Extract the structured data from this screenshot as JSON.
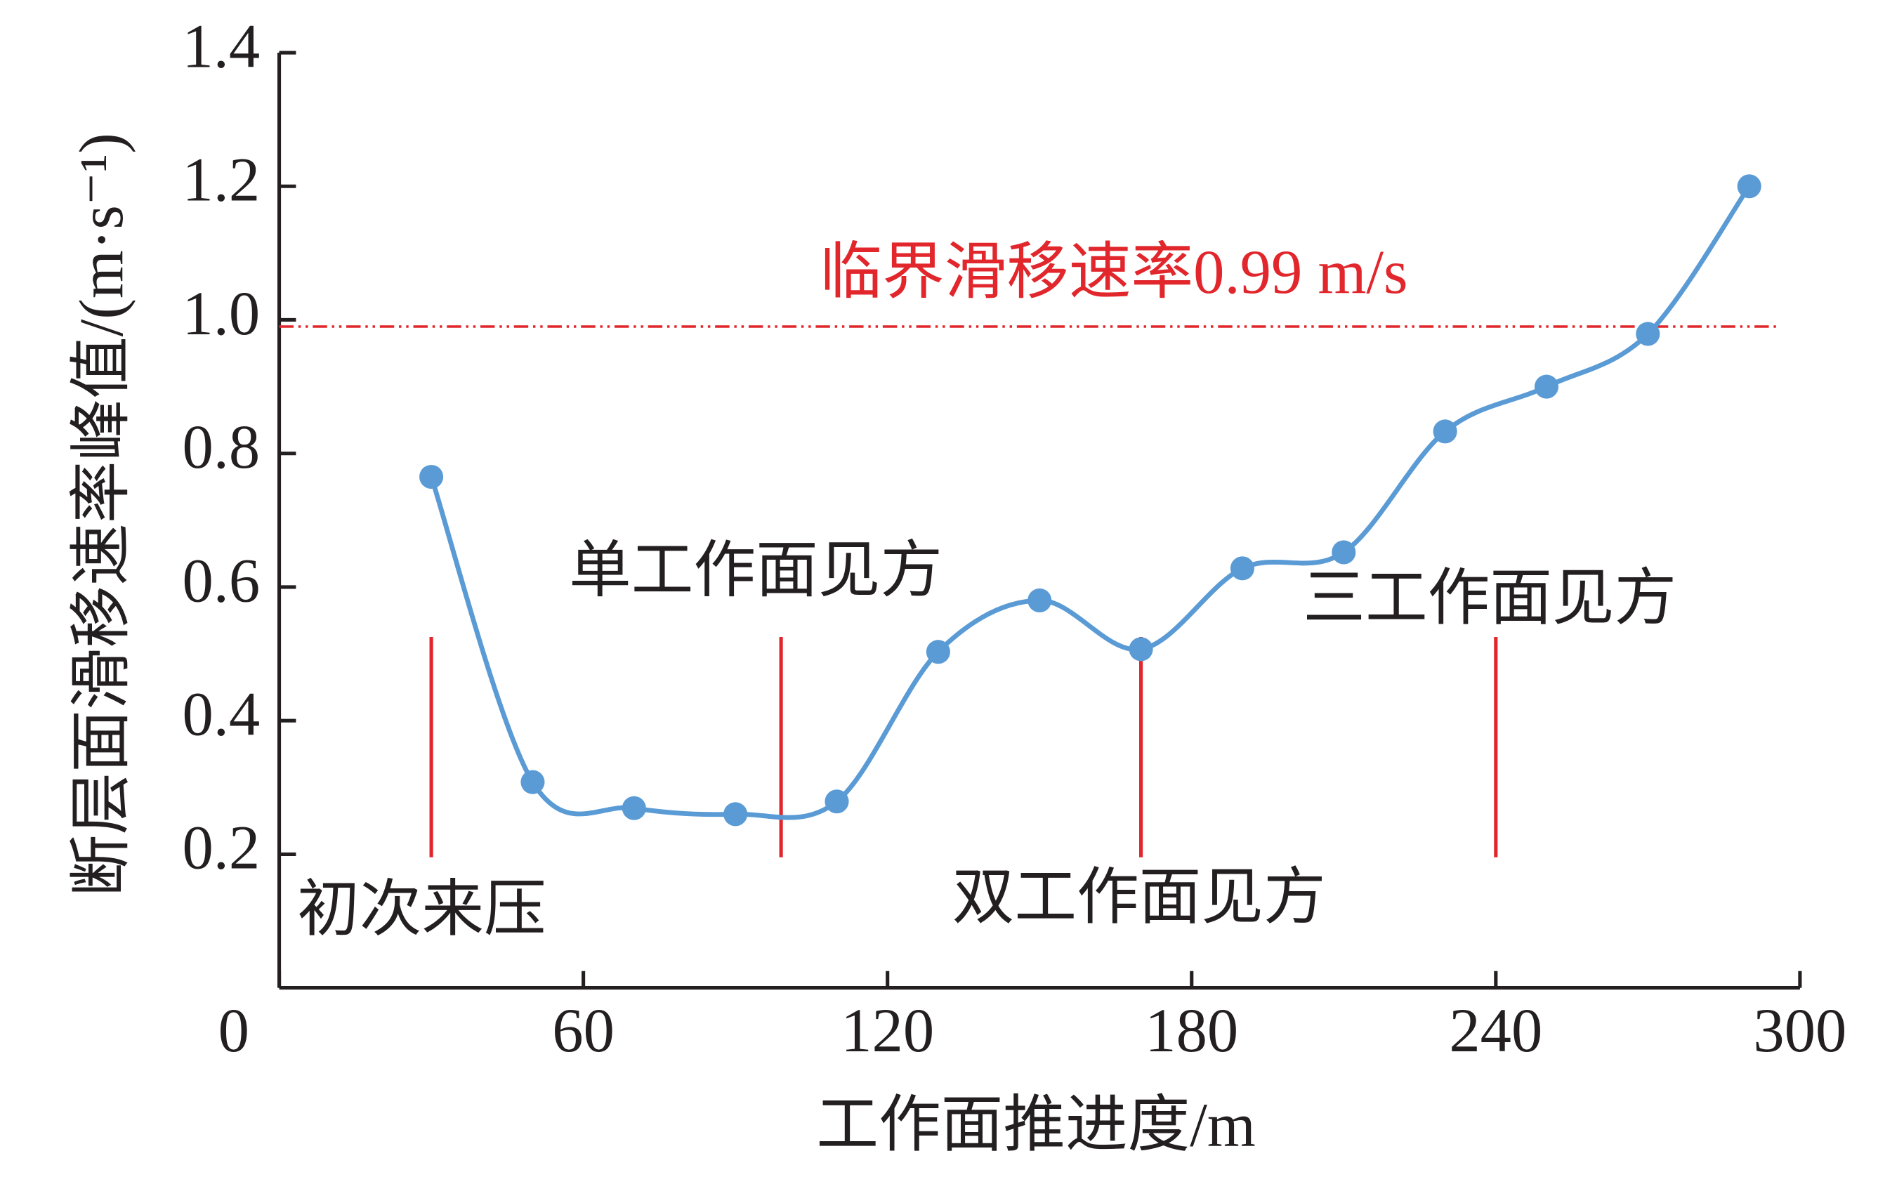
{
  "chart_data": {
    "type": "line",
    "x_label": "工作面推进度/m",
    "y_label": "断层面滑移速率峰值/(m·s⁻¹)",
    "x": [
      30,
      50,
      70,
      90,
      110,
      130,
      150,
      170,
      190,
      210,
      230,
      250,
      270,
      290
    ],
    "series": [
      {
        "color": "#5b9bd5",
        "values": [
          0.765,
          0.308,
          0.269,
          0.26,
          0.279,
          0.503,
          0.58,
          0.507,
          0.628,
          0.652,
          0.833,
          0.9,
          0.979,
          1.2
        ]
      }
    ],
    "xlim": [
      0,
      300
    ],
    "ylim": [
      0,
      1.4
    ],
    "xticks": [
      0,
      60,
      120,
      180,
      240,
      300
    ],
    "yticks": [
      0.2,
      0.4,
      0.6,
      {
        "value": 0.8,
        "label": "0.8"
      },
      {
        "value": 1.0,
        "label": "1.0"
      },
      1.2,
      1.4
    ],
    "threshold": {
      "value": 0.99,
      "label": "临界滑移速率0.99 m/s",
      "color": "#e1262c"
    },
    "phase_markers": {
      "color": "#e1262c",
      "x": [
        30,
        99,
        170,
        240
      ],
      "labels": [
        "初次来压",
        "单工作面见方",
        "双工作面见方",
        "三工作面见方"
      ]
    }
  }
}
